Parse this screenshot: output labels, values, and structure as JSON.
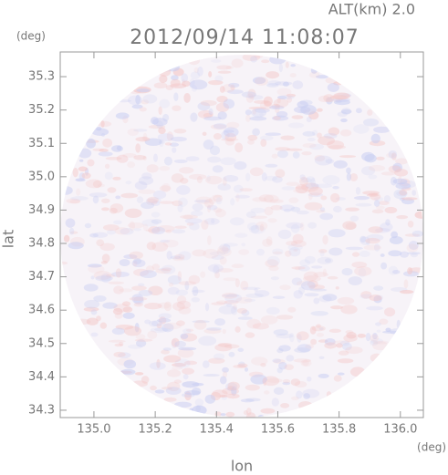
{
  "chart_data": {
    "type": "map",
    "title": "2012/09/14 11:08:07",
    "subtitle": "ALT(km) 2.0",
    "x_label": "lon",
    "y_label": "lat",
    "x_unit": "(deg)",
    "y_unit": "(deg)",
    "xlim": [
      134.89,
      136.075
    ],
    "ylim": [
      34.278,
      35.374
    ],
    "xticks": [
      {
        "value": 135.0,
        "label": "135.0"
      },
      135.2,
      135.4,
      135.6,
      135.8,
      {
        "value": 136.0,
        "label": "136.0"
      }
    ],
    "yticks": [
      34.3,
      34.4,
      34.5,
      34.6,
      34.7,
      34.8,
      34.9,
      {
        "value": 35.0,
        "label": "35.0"
      },
      35.1,
      35.2,
      35.3
    ],
    "grid": false
  }
}
